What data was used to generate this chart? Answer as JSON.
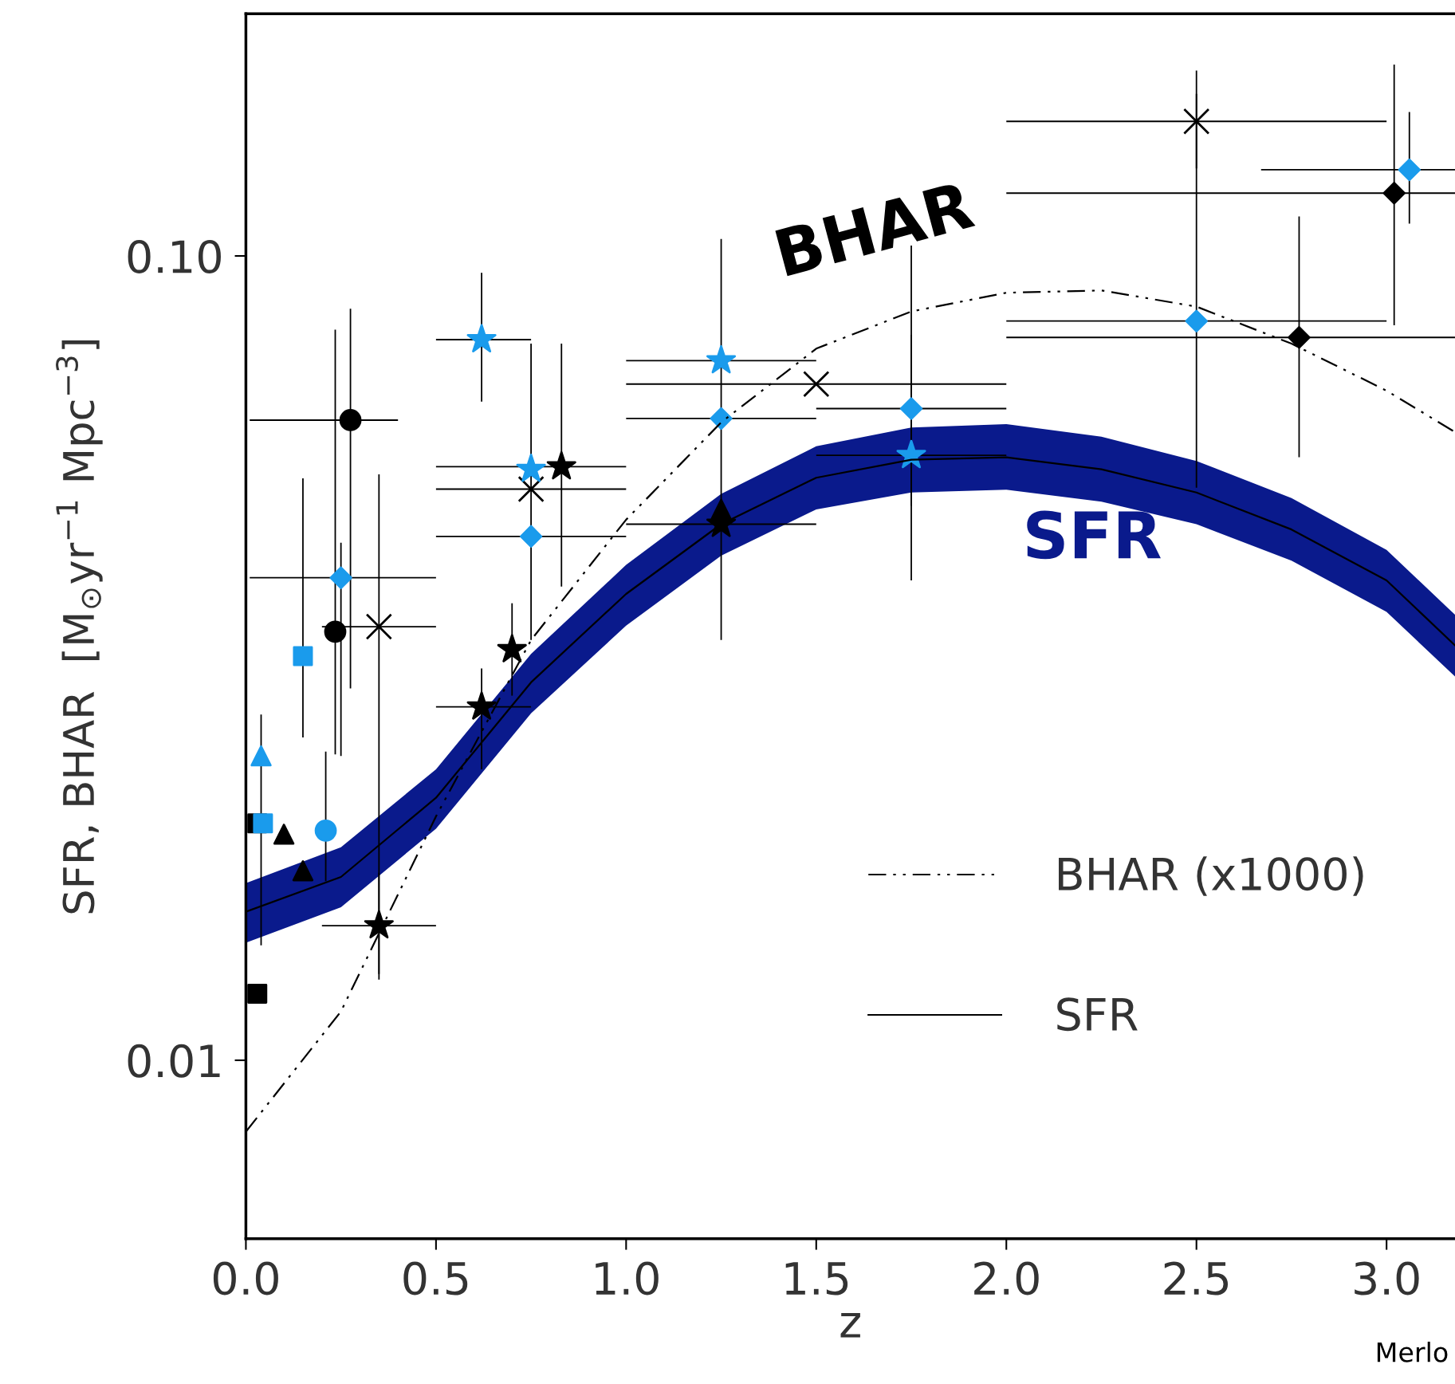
{
  "chart_data": {
    "type": "scatter",
    "xlabel": "z",
    "ylabel": "SFR, BHAR  [M$_{⊙}$yr$^{−1}$ Mpc$^{−3}$]",
    "log": "y",
    "xlim": [
      0,
      3.18
    ],
    "ylim": [
      0.006,
      0.2
    ],
    "xticks": [
      {
        "value": 0,
        "label": "0.0"
      },
      0.5,
      {
        "value": 1,
        "label": "1.0"
      },
      1.5,
      {
        "value": 2,
        "label": "2.0"
      },
      2.5,
      {
        "value": 3,
        "label": "3.0"
      }
    ],
    "yticks": [
      0.01,
      {
        "value": 0.1,
        "label": "0.10"
      }
    ],
    "grid": false,
    "legend": "bottom right",
    "annotations": [
      "BHAR",
      "SFR",
      "Merlo"
    ],
    "series": [
      {
        "type": "line",
        "name": "BHAR (x1000)",
        "color": "#000000",
        "line_style": "dashdotdot",
        "x": [
          0,
          0.25,
          0.5,
          0.75,
          1.0,
          1.25,
          1.5,
          1.75,
          2.0,
          2.25,
          2.5,
          2.75,
          3.0,
          3.18
        ],
        "values": [
          0.00815,
          0.0115,
          0.0201,
          0.0333,
          0.047,
          0.0621,
          0.0767,
          0.0853,
          0.09,
          0.0906,
          0.0865,
          0.0778,
          0.068,
          0.0604
        ]
      },
      {
        "type": "line",
        "name": "SFR",
        "color": "#000000",
        "line_style": "solid",
        "x": [
          0,
          0.25,
          0.5,
          0.75,
          1.0,
          1.25,
          1.5,
          1.75,
          2.0,
          2.25,
          2.5,
          2.75,
          3.0,
          3.18
        ],
        "values": [
          0.0153,
          0.0169,
          0.0212,
          0.0295,
          0.038,
          0.0464,
          0.053,
          0.0558,
          0.0562,
          0.0543,
          0.0508,
          0.0457,
          0.0395,
          0.0328
        ],
        "lower": [
          0.014,
          0.0155,
          0.0194,
          0.027,
          0.0347,
          0.0424,
          0.0484,
          0.0508,
          0.0512,
          0.0495,
          0.0464,
          0.0418,
          0.0361,
          0.03
        ],
        "upper": [
          0.0166,
          0.0184,
          0.023,
          0.032,
          0.0413,
          0.0506,
          0.058,
          0.0612,
          0.0618,
          0.0596,
          0.0556,
          0.05,
          0.0431,
          0.0358
        ]
      },
      {
        "marker": "circle",
        "color": "#000000",
        "x": [
          0.275
        ],
        "values": [
          0.0625
        ],
        "errors": [
          [
            0.029,
            0.086
          ]
        ],
        "xerrors": [
          [
            0.01,
            0.4
          ]
        ]
      },
      {
        "marker": "diamond",
        "color": "#1a9bec",
        "x": [
          0.25,
          0.75,
          1.25,
          1.75,
          2.5
        ],
        "values": [
          0.0398,
          0.0448,
          0.0628,
          0.0646,
          0.083
        ],
        "errors": [
          [
            0.0239,
            0.044
          ],
          null,
          [
            0.0333,
            0.105
          ],
          [
            0.0395,
            0.103
          ],
          [
            0.0515,
            0.159
          ]
        ],
        "xerrors": [
          [
            0.01,
            0.5
          ],
          [
            0.5,
            1.0
          ],
          [
            1.0,
            1.5
          ],
          [
            1.5,
            2.0
          ],
          [
            2.0,
            3.0
          ]
        ]
      },
      {
        "marker": "circle",
        "color": "#000000",
        "x": [
          0.235
        ],
        "values": [
          0.0341
        ],
        "errors": [
          [
            0.024,
            0.081
          ]
        ],
        "xerrors": [
          null
        ]
      },
      {
        "marker": "cross",
        "color": "#000000",
        "x": [
          0.35,
          0.75,
          1.5,
          2.5
        ],
        "values": [
          0.0346,
          0.0513,
          0.0693,
          0.147
        ],
        "errors": [
          [
            0.0128,
            0.0535
          ],
          [
            0.0333,
            0.0778
          ],
          null,
          [
            0.1285,
            0.17
          ]
        ],
        "xerrors": [
          [
            0.2,
            0.5
          ],
          [
            0.5,
            1.0
          ],
          [
            1.0,
            2.0
          ],
          [
            2.0,
            3.0
          ]
        ]
      },
      {
        "marker": "square",
        "color": "#1a9bec",
        "x": [
          0.15
        ],
        "values": [
          0.0318
        ],
        "errors": [
          [
            0.0252,
            0.0529
          ]
        ],
        "xerrors": [
          null
        ]
      },
      {
        "marker": "triangle",
        "color": "#1a9bec",
        "x": [
          0.04
        ],
        "values": [
          0.0239
        ],
        "errors": [
          [
            0.0139,
            0.0269
          ]
        ],
        "xerrors": [
          null
        ]
      },
      {
        "marker": "square",
        "color": "#000000",
        "x": [
          0.03
        ],
        "values": [
          0.0197
        ],
        "errors": [
          null
        ],
        "xerrors": [
          null
        ]
      },
      {
        "marker": "square",
        "color": "#1a9bec",
        "x": [
          0.045
        ],
        "values": [
          0.0197
        ],
        "errors": [
          null
        ],
        "xerrors": [
          null
        ]
      },
      {
        "marker": "triangle",
        "color": "#000000",
        "x": [
          0.1,
          1.25
        ],
        "values": [
          0.0191,
          0.0484
        ],
        "errors": [
          null,
          null
        ],
        "xerrors": [
          null,
          null
        ]
      },
      {
        "marker": "circle",
        "color": "#1a9bec",
        "x": [
          0.21
        ],
        "values": [
          0.0193
        ],
        "errors": [
          [
            0.0167,
            0.0242
          ]
        ],
        "xerrors": [
          null
        ]
      },
      {
        "marker": "triangle",
        "color": "#000000",
        "x": [
          0.15
        ],
        "values": [
          0.0172
        ],
        "errors": [
          null
        ],
        "xerrors": [
          null
        ]
      },
      {
        "marker": "star",
        "color": "#000000",
        "x": [
          0.35,
          0.83,
          0.62
        ],
        "values": [
          0.0147,
          0.0547,
          0.0275
        ],
        "errors": [
          [
            0.0126,
            0.0171
          ],
          [
            0.0388,
            0.0778
          ],
          [
            0.023,
            0.0307
          ]
        ],
        "xerrors": [
          [
            0.2,
            0.5
          ],
          [
            0.5,
            1.0
          ],
          [
            0.5,
            0.75
          ]
        ]
      },
      {
        "marker": "square",
        "color": "#000000",
        "x": [
          0.03
        ],
        "values": [
          0.0121
        ],
        "errors": [
          null
        ],
        "xerrors": [
          null
        ]
      },
      {
        "marker": "star",
        "color": "#1a9bec",
        "x": [
          0.62
        ],
        "values": [
          0.0787
        ],
        "errors": [
          [
            0.0659,
            0.0953
          ]
        ],
        "xerrors": [
          [
            0.5,
            0.75
          ]
        ]
      },
      {
        "marker": "star",
        "color": "#1a9bec",
        "x": [
          0.75,
          1.25,
          1.75
        ],
        "values": [
          0.0543,
          0.0741,
          0.0565
        ],
        "errors": [
          null,
          null,
          [
            0.0489,
            0.0798
          ]
        ],
        "xerrors": [
          null,
          [
            1.0,
            1.5
          ],
          [
            1.5,
            2.0
          ]
        ]
      },
      {
        "marker": "star",
        "color": "#000000",
        "x": [
          0.7,
          1.25
        ],
        "values": [
          0.0324,
          0.0464
        ],
        "errors": [
          [
            0.0284,
            0.037
          ],
          null
        ],
        "xerrors": [
          null,
          [
            1.0,
            1.5
          ]
        ]
      },
      {
        "marker": "diamond",
        "color": "#000000",
        "x": [
          2.77
        ],
        "values": [
          0.0792
        ],
        "errors": [
          [
            0.0562,
            0.112
          ]
        ],
        "xerrors": [
          [
            2.0,
            3.18
          ]
        ]
      },
      {
        "marker": "diamond",
        "color": "#000000",
        "x": [
          3.02
        ],
        "values": [
          0.1197
        ],
        "errors": [
          [
            0.082,
            0.173
          ]
        ],
        "xerrors": [
          [
            2.0,
            3.18
          ]
        ]
      },
      {
        "marker": "diamond",
        "color": "#1a9bec",
        "x": [
          3.06
        ],
        "values": [
          0.128
        ],
        "errors": [
          [
            0.1097,
            0.151
          ]
        ],
        "xerrors": [
          [
            2.67,
            3.18
          ]
        ]
      }
    ]
  }
}
